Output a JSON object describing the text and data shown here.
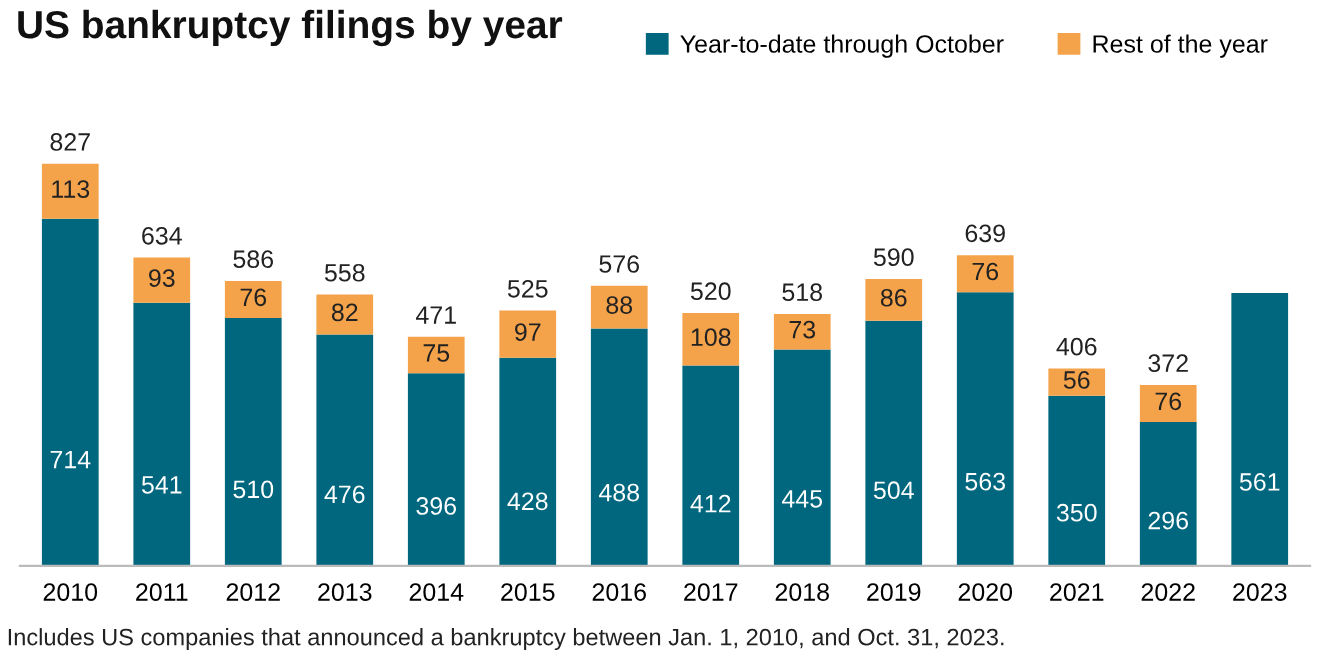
{
  "chart_data": {
    "type": "bar",
    "title": "US bankruptcy filings by year",
    "categories": [
      "2010",
      "2011",
      "2012",
      "2013",
      "2014",
      "2015",
      "2016",
      "2017",
      "2018",
      "2019",
      "2020",
      "2021",
      "2022",
      "2023"
    ],
    "stacked": true,
    "series": [
      {
        "name": "Year-to-date through October",
        "color": "#00677f",
        "values": [
          714,
          541,
          510,
          476,
          396,
          428,
          488,
          412,
          445,
          504,
          563,
          350,
          296,
          561
        ]
      },
      {
        "name": "Rest of the year",
        "color": "#f4a34b",
        "values": [
          113,
          93,
          76,
          82,
          75,
          97,
          88,
          108,
          73,
          86,
          76,
          56,
          76,
          null
        ]
      }
    ],
    "data_labels": true,
    "totals": [
      "827",
      "634",
      "586",
      "558",
      "471",
      "525",
      "576",
      "520",
      "518",
      "590",
      "639",
      "406",
      "372",
      null
    ],
    "legend": "top",
    "tick_labels": "x",
    "grid": false,
    "annotations": [
      "Includes US companies that announced a bankruptcy between Jan. 1, 2010, and Oct. 31, 2023."
    ]
  }
}
